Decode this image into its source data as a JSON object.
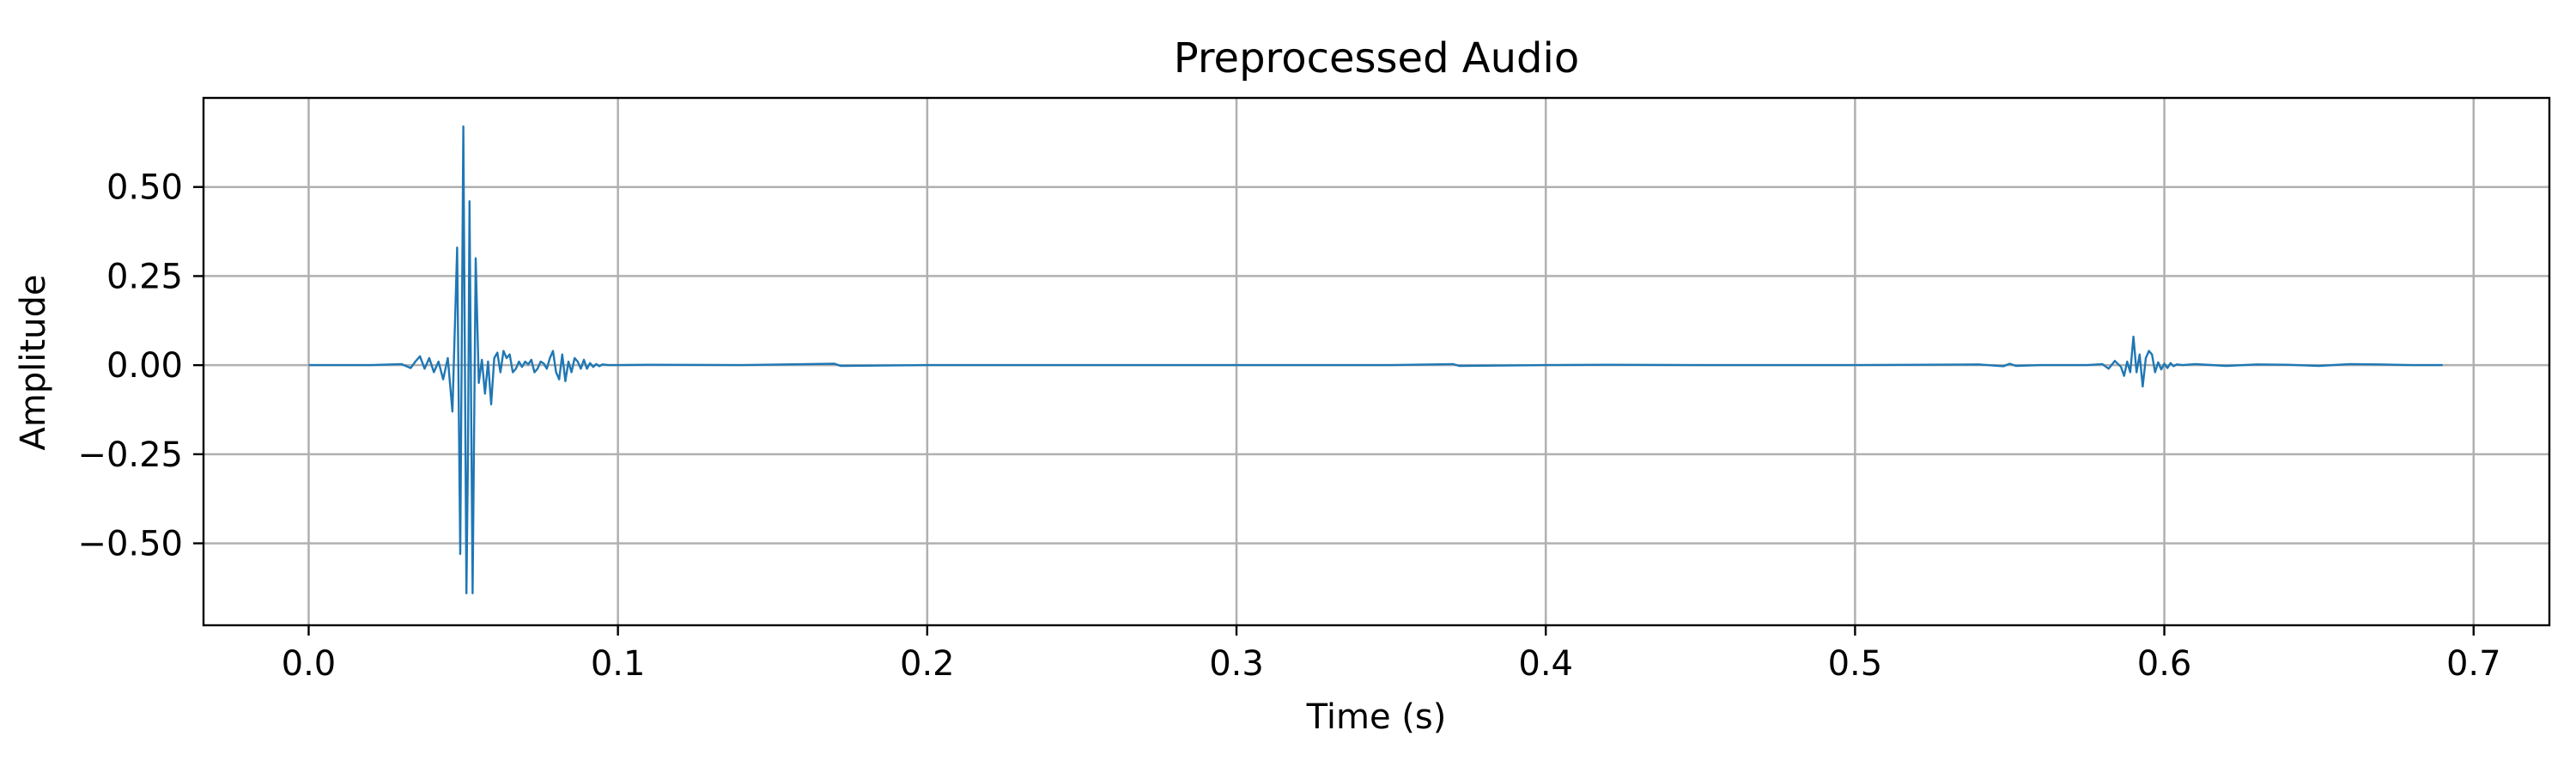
{
  "chart_data": {
    "type": "line",
    "title": "Preprocessed Audio",
    "xlabel": "Time (s)",
    "ylabel": "Amplitude",
    "xlim": [
      -0.034,
      0.7245
    ],
    "ylim": [
      -0.73,
      0.75
    ],
    "xticks": [
      0.0,
      0.1,
      0.2,
      0.3,
      0.4,
      0.5,
      0.6,
      0.7
    ],
    "xtick_labels": [
      "0.0",
      "0.1",
      "0.2",
      "0.3",
      "0.4",
      "0.5",
      "0.6",
      "0.7"
    ],
    "yticks": [
      0.5,
      0.25,
      0.0,
      -0.25,
      -0.5
    ],
    "ytick_labels": [
      "0.50",
      "0.25",
      "0.00",
      "−0.25",
      "−0.50"
    ],
    "grid": true,
    "line_color": "#1f77b4",
    "series": [
      {
        "x": [
          0.0,
          0.02,
          0.03,
          0.033,
          0.0345,
          0.036,
          0.0375,
          0.039,
          0.0405,
          0.042,
          0.0435,
          0.045,
          0.0465,
          0.048,
          0.049,
          0.05,
          0.051,
          0.0515,
          0.052,
          0.053,
          0.054,
          0.055,
          0.056,
          0.057,
          0.058,
          0.059,
          0.06,
          0.061,
          0.062,
          0.063,
          0.064,
          0.065,
          0.066,
          0.067,
          0.068,
          0.069,
          0.07,
          0.071,
          0.072,
          0.073,
          0.074,
          0.075,
          0.076,
          0.077,
          0.078,
          0.079,
          0.08,
          0.081,
          0.082,
          0.083,
          0.084,
          0.085,
          0.086,
          0.087,
          0.088,
          0.089,
          0.09,
          0.091,
          0.092,
          0.093,
          0.094,
          0.095,
          0.097,
          0.1,
          0.11,
          0.14,
          0.17,
          0.172,
          0.2,
          0.25,
          0.3,
          0.35,
          0.37,
          0.372,
          0.4,
          0.42,
          0.45,
          0.5,
          0.54,
          0.548,
          0.55,
          0.552,
          0.56,
          0.575,
          0.58,
          0.582,
          0.584,
          0.586,
          0.587,
          0.588,
          0.589,
          0.59,
          0.591,
          0.592,
          0.593,
          0.594,
          0.595,
          0.596,
          0.597,
          0.598,
          0.599,
          0.6,
          0.601,
          0.602,
          0.603,
          0.604,
          0.606,
          0.61,
          0.62,
          0.63,
          0.64,
          0.65,
          0.66,
          0.67,
          0.68,
          0.69
        ],
        "y": [
          0.0,
          0.0,
          0.003,
          -0.008,
          0.01,
          0.025,
          -0.01,
          0.02,
          -0.02,
          0.01,
          -0.04,
          0.02,
          -0.13,
          0.33,
          -0.53,
          0.67,
          -0.64,
          -0.25,
          0.46,
          -0.64,
          0.3,
          -0.05,
          0.015,
          -0.08,
          0.01,
          -0.11,
          0.02,
          0.035,
          -0.02,
          0.04,
          0.02,
          0.03,
          -0.02,
          -0.01,
          0.01,
          -0.005,
          0.01,
          0.002,
          0.015,
          -0.02,
          -0.01,
          0.01,
          0.005,
          -0.01,
          0.02,
          0.04,
          -0.02,
          -0.04,
          0.03,
          -0.045,
          0.01,
          -0.02,
          0.02,
          0.01,
          -0.01,
          0.015,
          -0.01,
          0.006,
          -0.005,
          0.003,
          -0.003,
          0.002,
          0.0,
          0.0,
          0.001,
          0.0,
          0.004,
          -0.002,
          0.0,
          0.0,
          0.0,
          0.0,
          0.003,
          -0.002,
          0.0,
          0.001,
          0.0,
          0.0,
          0.002,
          -0.003,
          0.004,
          -0.002,
          0.0,
          0.0,
          0.003,
          -0.01,
          0.012,
          -0.005,
          -0.03,
          0.01,
          -0.02,
          0.08,
          -0.02,
          0.03,
          -0.06,
          0.02,
          0.04,
          0.03,
          -0.02,
          0.008,
          -0.012,
          0.004,
          -0.008,
          0.006,
          -0.003,
          0.002,
          0.0,
          0.003,
          -0.002,
          0.002,
          0.001,
          -0.002,
          0.003,
          0.002,
          0.0,
          0.0
        ]
      }
    ]
  }
}
